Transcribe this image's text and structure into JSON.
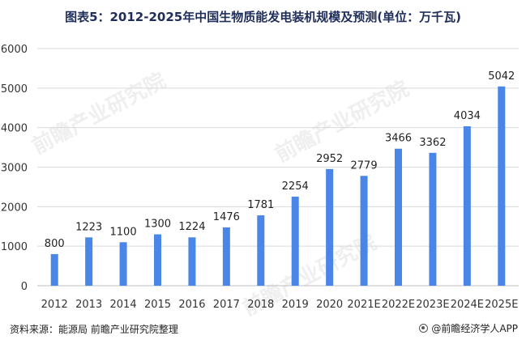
{
  "title": "图表5：2012-2025年中国生物质能发电装机规模及预测(单位：万千瓦)",
  "source": "资料来源：能源局 前瞻产业研究院整理",
  "brand": "@前瞻经济学人APP",
  "watermark": "前瞻产业研究院",
  "colors": {
    "bar": "#4a86e8",
    "grid": "#d9d9d9",
    "axis": "#bfbfbf"
  },
  "chart_data": {
    "type": "bar",
    "title": "图表5：2012-2025年中国生物质能发电装机规模及预测(单位：万千瓦)",
    "xlabel": "",
    "ylabel": "",
    "categories": [
      "2012",
      "2013",
      "2014",
      "2015",
      "2016",
      "2017",
      "2018",
      "2019",
      "2020",
      "2021E",
      "2022E",
      "2023E",
      "2024E",
      "2025E"
    ],
    "values": [
      800,
      1223,
      1100,
      1300,
      1224,
      1476,
      1781,
      2254,
      2952,
      2779,
      3466,
      3362,
      4034,
      5042
    ],
    "data_labels": [
      "800",
      "1223",
      "1100",
      "1300",
      "1224",
      "1476",
      "1781",
      "2254",
      "2952",
      "2779",
      "3466",
      "3362",
      "4034",
      "5042"
    ],
    "ylim": [
      0,
      6000
    ],
    "yticks": [
      0,
      1000,
      2000,
      3000,
      4000,
      5000,
      6000
    ],
    "ytick_labels": [
      "0",
      "1000",
      "2000",
      "3000",
      "4000",
      "5000",
      "6000"
    ],
    "grid": true,
    "legend": "none"
  }
}
